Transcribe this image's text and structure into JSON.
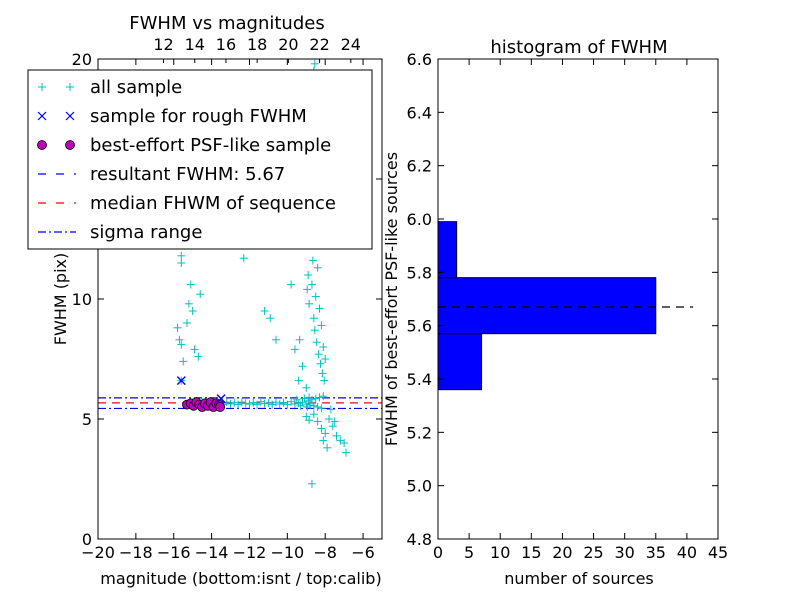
{
  "chart_data": [
    {
      "type": "scatter",
      "title": "FWHM vs magnitudes",
      "xlabel": "magnitude (bottom:isnt / top:calib)",
      "ylabel": "FWHM (pix)",
      "xlim": [
        -20,
        -5
      ],
      "ylim": [
        0,
        20
      ],
      "x_ticks": [
        -20,
        -18,
        -16,
        -14,
        -12,
        -10,
        -8,
        -6
      ],
      "x_tick_labels": [
        "−20",
        "−18",
        "−16",
        "−14",
        "−12",
        "−10",
        "−8",
        "−6"
      ],
      "y_ticks": [
        0,
        5,
        10,
        15,
        20
      ],
      "y_tick_labels": [
        "0",
        "5",
        "10",
        "",
        "20"
      ],
      "top_axis_ticks": [
        12,
        14,
        16,
        18,
        20,
        22,
        24
      ],
      "top_axis_lim": [
        7.8,
        26.0
      ],
      "legend": {
        "placement": "upper-left",
        "entries": [
          {
            "label": "all sample",
            "marker": "+",
            "color": "#00bfbf"
          },
          {
            "label": "sample for rough FWHM",
            "marker": "x",
            "color": "#0000ff"
          },
          {
            "label": "best-effort PSF-like sample",
            "marker": "o",
            "color": "#bf00bf"
          },
          {
            "label": "resultant FWHM: 5.67",
            "line": "dashed",
            "color": "#0000ff"
          },
          {
            "label": "median FHWM of sequence",
            "line": "dashed",
            "color": "#ff0000"
          },
          {
            "label": "sigma range",
            "line": "dashdot",
            "color": "#0000ff"
          }
        ]
      },
      "series": [
        {
          "name": "all sample",
          "marker": "+",
          "color": "#00bfbf",
          "points": [
            [
              -15.6,
              6.6
            ],
            [
              -15.8,
              8.8
            ],
            [
              -15.6,
              8.1
            ],
            [
              -15.5,
              7.4
            ],
            [
              -15.7,
              8.3
            ],
            [
              -15.6,
              11.5
            ],
            [
              -15.6,
              11.8
            ],
            [
              -15.3,
              9.0
            ],
            [
              -15.2,
              9.8
            ],
            [
              -15.1,
              10.6
            ],
            [
              -15.0,
              9.5
            ],
            [
              -14.9,
              7.9
            ],
            [
              -14.6,
              10.2
            ],
            [
              -14.7,
              7.6
            ],
            [
              -12.3,
              11.7
            ],
            [
              -11.2,
              9.5
            ],
            [
              -10.9,
              9.2
            ],
            [
              -10.6,
              8.3
            ],
            [
              -15.3,
              5.62
            ],
            [
              -15.0,
              5.68
            ],
            [
              -14.8,
              5.6
            ],
            [
              -14.5,
              5.7
            ],
            [
              -14.2,
              5.65
            ],
            [
              -14.0,
              5.6
            ],
            [
              -13.8,
              5.72
            ],
            [
              -13.6,
              5.66
            ],
            [
              -13.4,
              5.6
            ],
            [
              -13.2,
              5.7
            ],
            [
              -13.0,
              5.63
            ],
            [
              -12.8,
              5.68
            ],
            [
              -12.6,
              5.6
            ],
            [
              -12.4,
              5.7
            ],
            [
              -12.2,
              5.65
            ],
            [
              -12.0,
              5.62
            ],
            [
              -11.8,
              5.68
            ],
            [
              -11.6,
              5.6
            ],
            [
              -11.4,
              5.72
            ],
            [
              -11.2,
              5.64
            ],
            [
              -11.0,
              5.66
            ],
            [
              -10.8,
              5.6
            ],
            [
              -10.6,
              5.7
            ],
            [
              -10.4,
              5.62
            ],
            [
              -10.2,
              5.68
            ],
            [
              -10.0,
              5.6
            ],
            [
              -9.8,
              5.72
            ],
            [
              -9.6,
              5.63
            ],
            [
              -9.4,
              5.66
            ],
            [
              -9.2,
              5.7
            ],
            [
              -9.0,
              5.62
            ],
            [
              -8.9,
              5.75
            ],
            [
              -8.8,
              5.58
            ],
            [
              -8.7,
              5.8
            ],
            [
              -8.6,
              5.55
            ],
            [
              -8.5,
              5.85
            ],
            [
              -8.4,
              5.5
            ],
            [
              -8.3,
              5.9
            ],
            [
              -8.2,
              5.45
            ],
            [
              -8.1,
              5.95
            ],
            [
              -9.5,
              5.8
            ],
            [
              -9.3,
              5.55
            ],
            [
              -9.1,
              5.85
            ],
            [
              -8.95,
              5.5
            ],
            [
              -8.85,
              5.9
            ],
            [
              -8.95,
              10.4
            ],
            [
              -8.9,
              11.0
            ],
            [
              -8.85,
              9.8
            ],
            [
              -8.8,
              12.5
            ],
            [
              -8.75,
              13.2
            ],
            [
              -8.7,
              10.6
            ],
            [
              -8.65,
              11.6
            ],
            [
              -8.6,
              9.2
            ],
            [
              -8.55,
              8.7
            ],
            [
              -8.5,
              10.1
            ],
            [
              -8.45,
              8.2
            ],
            [
              -8.4,
              11.3
            ],
            [
              -8.35,
              7.7
            ],
            [
              -8.3,
              9.6
            ],
            [
              -8.25,
              7.3
            ],
            [
              -8.2,
              8.9
            ],
            [
              -8.15,
              6.9
            ],
            [
              -8.1,
              8.0
            ],
            [
              -8.05,
              6.6
            ],
            [
              -8.0,
              7.5
            ],
            [
              -8.85,
              14.0
            ],
            [
              -8.8,
              14.8
            ],
            [
              -8.75,
              16.0
            ],
            [
              -8.7,
              17.2
            ],
            [
              -8.65,
              18.5
            ],
            [
              -8.6,
              19.5
            ],
            [
              -8.55,
              19.8
            ],
            [
              -8.5,
              18.0
            ],
            [
              -8.45,
              16.5
            ],
            [
              -8.4,
              15.3
            ],
            [
              -8.3,
              13.8
            ],
            [
              -8.2,
              12.6
            ],
            [
              -9.8,
              10.6
            ],
            [
              -9.6,
              7.9
            ],
            [
              -9.4,
              6.6
            ],
            [
              -9.2,
              7.2
            ],
            [
              -9.0,
              6.3
            ],
            [
              -9.35,
              8.3
            ],
            [
              -8.6,
              5.2
            ],
            [
              -8.4,
              4.9
            ],
            [
              -8.2,
              4.6
            ],
            [
              -8.0,
              4.4
            ],
            [
              -7.8,
              5.0
            ],
            [
              -7.6,
              4.7
            ],
            [
              -7.4,
              4.3
            ],
            [
              -7.2,
              4.1
            ],
            [
              -7.0,
              4.0
            ],
            [
              -6.9,
              3.6
            ],
            [
              -7.7,
              5.4
            ],
            [
              -7.5,
              4.9
            ],
            [
              -8.1,
              4.1
            ],
            [
              -7.9,
              3.8
            ],
            [
              -8.7,
              2.3
            ],
            [
              -9.0,
              5.1
            ],
            [
              -8.85,
              4.95
            ]
          ]
        },
        {
          "name": "sample for rough FWHM",
          "marker": "x",
          "color": "#0000ff",
          "points": [
            [
              -15.6,
              6.6
            ],
            [
              -13.5,
              5.85
            ]
          ]
        },
        {
          "name": "best-effort PSF-like sample",
          "marker": "o",
          "color": "#bf00bf",
          "points": [
            [
              -15.3,
              5.6
            ],
            [
              -15.1,
              5.65
            ],
            [
              -14.95,
              5.55
            ],
            [
              -14.8,
              5.7
            ],
            [
              -14.65,
              5.6
            ],
            [
              -14.5,
              5.5
            ],
            [
              -14.35,
              5.65
            ],
            [
              -14.2,
              5.55
            ],
            [
              -14.05,
              5.7
            ],
            [
              -13.9,
              5.5
            ],
            [
              -13.75,
              5.65
            ],
            [
              -13.6,
              5.6
            ],
            [
              -13.55,
              5.5
            ]
          ]
        }
      ],
      "hlines": [
        {
          "name": "resultant FWHM: 5.67",
          "y": 5.67,
          "style": "dashed",
          "color": "#0000ff"
        },
        {
          "name": "median FHWM of sequence",
          "y": 5.67,
          "style": "dashed",
          "color": "#ff0000"
        },
        {
          "name": "sigma range",
          "y": 5.88,
          "style": "dashdot",
          "color": "#0000ff"
        },
        {
          "name": "sigma range",
          "y": 5.44,
          "style": "dashdot",
          "color": "#0000ff"
        }
      ]
    },
    {
      "type": "bar",
      "orientation": "horizontal",
      "title": "histogram of FWHM",
      "xlabel": "number of sources",
      "ylabel": "FWHM of best-effort PSF-like sources",
      "xlim": [
        0,
        45
      ],
      "ylim": [
        4.8,
        6.6
      ],
      "x_ticks": [
        0,
        5,
        10,
        15,
        20,
        25,
        30,
        35,
        40,
        45
      ],
      "y_ticks": [
        4.8,
        5.0,
        5.2,
        5.4,
        5.6,
        5.8,
        6.0,
        6.2,
        6.4,
        6.6
      ],
      "y_tick_labels": [
        "4.8",
        "5.0",
        "5.2",
        "5.4",
        "5.6",
        "5.8",
        "6.0",
        "6.2",
        "6.4",
        "6.6"
      ],
      "bar_color": "#0000ff",
      "bins": [
        {
          "low": 5.36,
          "high": 5.57,
          "count": 7
        },
        {
          "low": 5.57,
          "high": 5.78,
          "count": 35
        },
        {
          "low": 5.78,
          "high": 5.99,
          "count": 3
        }
      ],
      "hline": {
        "y": 5.67,
        "x_range": [
          0,
          41
        ],
        "style": "dashed",
        "color": "#000000"
      }
    }
  ]
}
